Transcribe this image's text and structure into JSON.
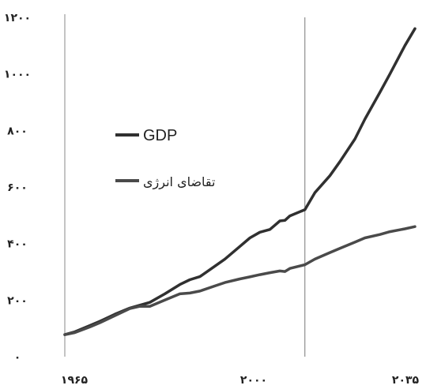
{
  "chart_data": {
    "type": "line",
    "title": "",
    "xlabel": "",
    "ylabel": "",
    "xlim": [
      1965,
      2035
    ],
    "ylim": [
      0,
      1200
    ],
    "x_ticks": [
      "۱۹۶۵",
      "۲۰۰۰",
      "۲۰۳۵"
    ],
    "y_ticks": [
      "۰",
      "۲۰۰",
      "۴۰۰",
      "۶۰۰",
      "۸۰۰",
      "۱۰۰۰",
      "۱۲۰۰"
    ],
    "x_tick_values": [
      1965,
      2000,
      2035
    ],
    "y_tick_values": [
      0,
      200,
      400,
      600,
      800,
      1000,
      1200
    ],
    "grid": false,
    "legend_position": "center-left",
    "divider_x": 2013,
    "series": [
      {
        "name": "GDP",
        "color": "#303030",
        "x": [
          1965,
          1967,
          1970,
          1972,
          1975,
          1978,
          1980,
          1982,
          1985,
          1988,
          1990,
          1992,
          1995,
          1997,
          2000,
          2002,
          2004,
          2006,
          2007,
          2008,
          2009,
          2010,
          2013,
          2015,
          2018,
          2020,
          2023,
          2025,
          2028,
          2030,
          2033,
          2035
        ],
        "y": [
          78,
          88,
          110,
          125,
          150,
          172,
          182,
          192,
          222,
          255,
          272,
          283,
          320,
          345,
          390,
          420,
          440,
          450,
          465,
          480,
          482,
          498,
          520,
          580,
          640,
          690,
          770,
          840,
          935,
          1000,
          1100,
          1160
        ]
      },
      {
        "name": "تقاضای انرژی",
        "color": "#4a4a4a",
        "x": [
          1965,
          1967,
          1970,
          1972,
          1975,
          1978,
          1980,
          1982,
          1985,
          1988,
          1990,
          1992,
          1995,
          1997,
          2000,
          2002,
          2004,
          2006,
          2007,
          2008,
          2009,
          2010,
          2013,
          2015,
          2018,
          2020,
          2023,
          2025,
          2028,
          2030,
          2033,
          2035
        ],
        "y": [
          78,
          85,
          105,
          120,
          145,
          170,
          178,
          178,
          200,
          222,
          225,
          232,
          250,
          262,
          275,
          282,
          290,
          297,
          300,
          303,
          301,
          312,
          325,
          345,
          368,
          383,
          405,
          420,
          432,
          442,
          452,
          460
        ]
      }
    ],
    "legend": [
      {
        "label": "GDP",
        "series": 0
      },
      {
        "label": "تقاضای انرژی",
        "series": 1
      }
    ]
  }
}
